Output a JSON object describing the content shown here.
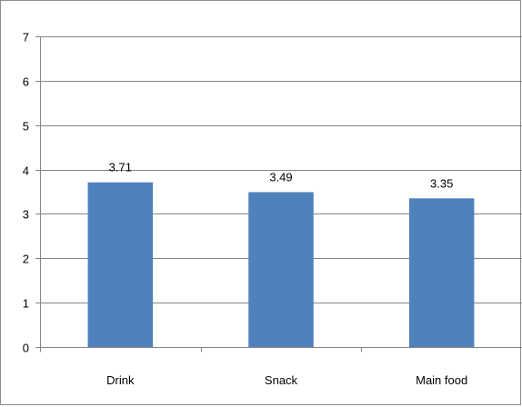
{
  "chart_data": {
    "type": "bar",
    "title": "",
    "xlabel": "",
    "ylabel": "",
    "categories": [
      "Drink",
      "Snack",
      "Main food"
    ],
    "values": [
      3.71,
      3.49,
      3.35
    ],
    "data_labels": [
      "3.71",
      "3.49",
      "3.35"
    ],
    "ylim": [
      0,
      7
    ],
    "yticks": [
      0,
      1,
      2,
      3,
      4,
      5,
      6,
      7
    ],
    "grid": true,
    "legend": "none",
    "colors": {
      "bar": "#4f81bd",
      "grid": "#868686",
      "axis": "#868686"
    }
  }
}
